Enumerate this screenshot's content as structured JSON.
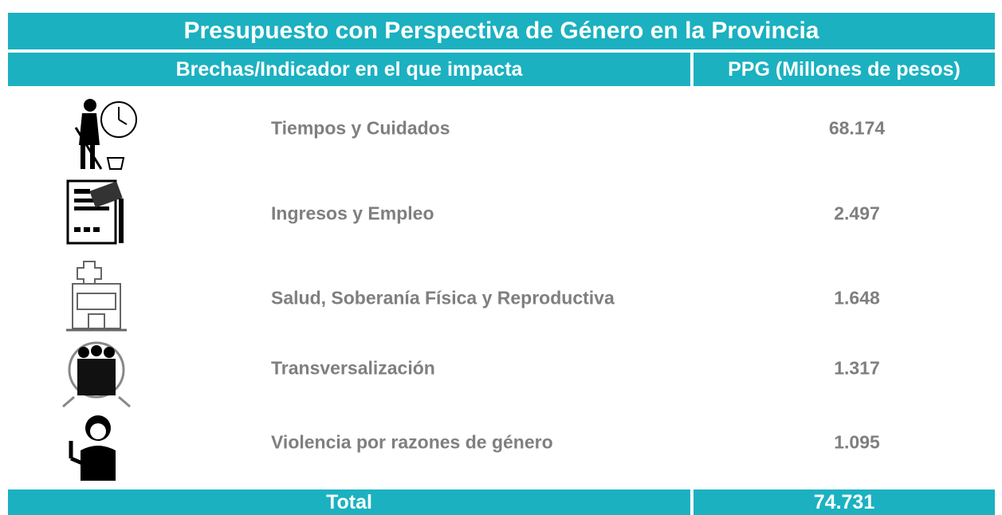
{
  "header": {
    "title": "Presupuesto con Perspectiva de Género en la Provincia",
    "columns": [
      "Brechas/Indicador en el que impacta",
      "PPG (Millones de pesos)"
    ]
  },
  "table": {
    "rows": [
      [
        "Tiempos y Cuidados",
        "68.174"
      ],
      [
        "Ingresos y Empleo",
        "2.497"
      ],
      [
        "Salud, Soberanía Física y Reproductiva",
        "1.648"
      ],
      [
        "Transversalización",
        "1.317"
      ],
      [
        "Violencia por razones de género",
        "1.095"
      ]
    ]
  },
  "total": {
    "label": "Total",
    "value": "74.731"
  }
}
